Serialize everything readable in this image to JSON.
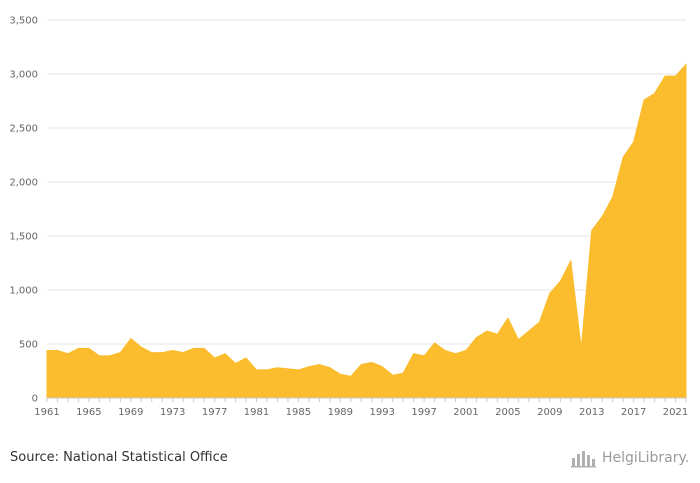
{
  "chart_data": {
    "type": "area",
    "title": "",
    "xlabel": "",
    "ylabel": "",
    "ylim": [
      0,
      3500
    ],
    "xlim": [
      1961,
      2022
    ],
    "y_ticks": [
      0,
      500,
      1000,
      1500,
      2000,
      2500,
      3000,
      3500
    ],
    "y_tick_labels": [
      "0",
      "500",
      "1,000",
      "1,500",
      "2,000",
      "2,500",
      "3,000",
      "3,500"
    ],
    "x_ticks": [
      1961,
      1965,
      1969,
      1973,
      1977,
      1981,
      1985,
      1989,
      1993,
      1997,
      2001,
      2005,
      2009,
      2013,
      2017,
      2021
    ],
    "grid": true,
    "legend": "none",
    "color": "#fbbc2d",
    "series": [
      {
        "name": "",
        "x": [
          1961,
          1962,
          1963,
          1964,
          1965,
          1966,
          1967,
          1968,
          1969,
          1970,
          1971,
          1972,
          1973,
          1974,
          1975,
          1976,
          1977,
          1978,
          1979,
          1980,
          1981,
          1982,
          1983,
          1984,
          1985,
          1986,
          1987,
          1988,
          1989,
          1990,
          1991,
          1992,
          1993,
          1994,
          1995,
          1996,
          1997,
          1998,
          1999,
          2000,
          2001,
          2002,
          2003,
          2004,
          2005,
          2006,
          2007,
          2008,
          2009,
          2010,
          2011,
          2012,
          2013,
          2014,
          2015,
          2016,
          2017,
          2018,
          2019,
          2020,
          2021,
          2022
        ],
        "values": [
          440,
          440,
          410,
          460,
          460,
          390,
          390,
          420,
          550,
          470,
          420,
          420,
          440,
          420,
          460,
          460,
          370,
          410,
          320,
          370,
          260,
          260,
          280,
          270,
          260,
          290,
          310,
          280,
          220,
          200,
          310,
          330,
          290,
          210,
          230,
          410,
          390,
          510,
          440,
          410,
          440,
          560,
          620,
          590,
          740,
          540,
          620,
          700,
          970,
          1080,
          1270,
          460,
          1550,
          1680,
          1860,
          2230,
          2370,
          2760,
          2820,
          2980,
          2980,
          3090
        ]
      }
    ]
  },
  "source_text": "Source: National Statistical Office",
  "logo": {
    "text": "HelgiLibrary.",
    "icon": "helgi-library-logo-icon"
  }
}
